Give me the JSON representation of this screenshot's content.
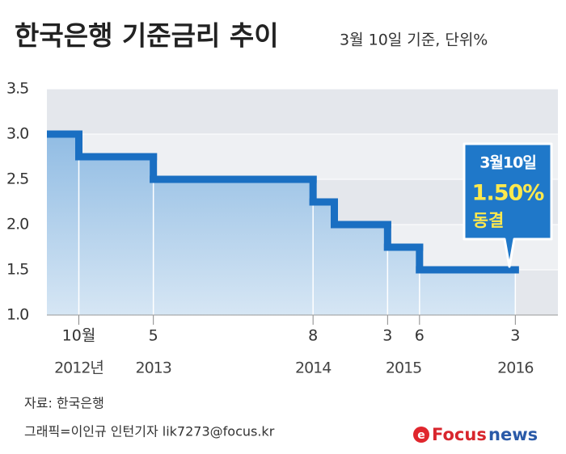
{
  "chart_data": {
    "type": "step",
    "title": "한국은행 기준금리 추이",
    "subtitle": "3월 10일 기준, 단위%",
    "x": [
      "2012-07",
      "2012-10",
      "2013-05",
      "2014-08",
      "2014-10",
      "2015-03",
      "2015-06",
      "2016-03"
    ],
    "values": [
      3,
      2.75,
      2.5,
      2.25,
      2,
      1.75,
      1.5,
      1.5
    ],
    "xtick_labels": [
      null,
      "10월",
      "5",
      "8",
      null,
      "3",
      "6",
      "3"
    ],
    "xtick_years": [
      null,
      "2012년",
      "2013",
      "2014",
      null,
      "2015",
      null,
      "2016"
    ],
    "xlim": [
      "2012-07",
      "2016-07"
    ],
    "ylim": [
      1,
      3.5
    ],
    "yticks": [
      {
        "value": 1,
        "label": "1.0"
      },
      1.5,
      {
        "value": 2,
        "label": "2.0"
      },
      2.5,
      {
        "value": 3,
        "label": "3.0"
      },
      3.5
    ],
    "color": "#1a6fc2",
    "annotation": {
      "date": "3월10일",
      "value": "1.50%",
      "text": "동결"
    },
    "source": "자료: 한국은행",
    "credit": "그래픽=이인규 인턴기자 lik7273@focus.kr",
    "logo": [
      "Focus",
      "news"
    ]
  }
}
